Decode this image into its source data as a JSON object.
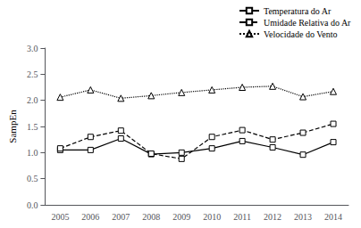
{
  "chart_data": {
    "type": "line",
    "categories": [
      "2005",
      "2006",
      "2007",
      "2008",
      "2009",
      "2010",
      "2011",
      "2012",
      "2013",
      "2014"
    ],
    "series": [
      {
        "name": "Temperatura do Ar",
        "color": "#000000",
        "line_style": "solid",
        "marker": "square",
        "values": [
          1.05,
          1.05,
          1.27,
          0.97,
          1.0,
          1.08,
          1.22,
          1.1,
          0.96,
          1.2
        ]
      },
      {
        "name": "Umidade Relativa do Ar",
        "color": "#000000",
        "line_style": "dashed",
        "marker": "square",
        "values": [
          1.08,
          1.3,
          1.42,
          0.98,
          0.88,
          1.3,
          1.43,
          1.25,
          1.38,
          1.55
        ]
      },
      {
        "name": "Velocidade do Vento",
        "color": "#000000",
        "line_style": "dotted",
        "marker": "triangle",
        "values": [
          2.06,
          2.2,
          2.04,
          2.09,
          2.15,
          2.2,
          2.25,
          2.27,
          2.07,
          2.17
        ]
      }
    ],
    "y_label": "SampEn",
    "ylim": [
      0.0,
      3.0
    ],
    "yticks": [
      {
        "value": 0,
        "label": "0.0"
      },
      0.5,
      {
        "value": 1,
        "label": "1.0"
      },
      1.5,
      {
        "value": 2,
        "label": "2.0"
      },
      2.5,
      {
        "value": 3,
        "label": "3.0"
      }
    ],
    "grid": false,
    "legend": "upper right"
  }
}
